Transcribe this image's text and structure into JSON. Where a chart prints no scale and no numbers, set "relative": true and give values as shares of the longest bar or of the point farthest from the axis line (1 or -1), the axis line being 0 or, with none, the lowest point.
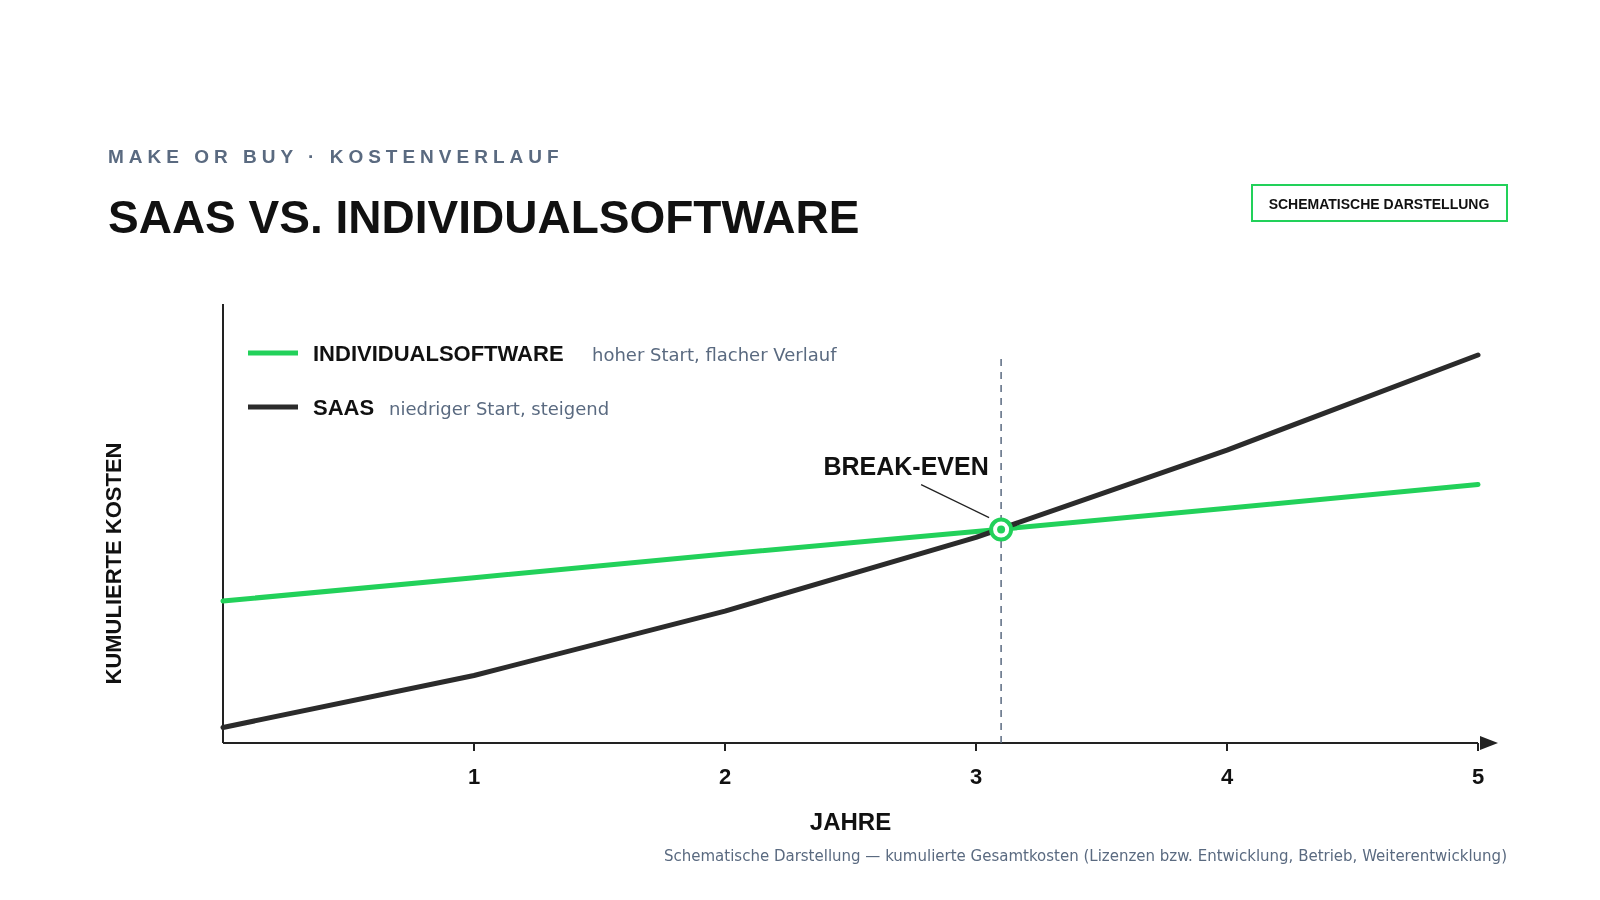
{
  "chart_data": {
    "type": "line",
    "subtitle": "MAKE OR BUY · KOSTENVERLAUF",
    "title": "SAAS VS. INDIVIDUALSOFTWARE",
    "xlabel": "JAHRE",
    "ylabel": "KUMULIERTE KOSTEN",
    "relative": true,
    "x": [
      0,
      1,
      2,
      3,
      4,
      5
    ],
    "xlim": [
      0,
      5
    ],
    "xticks": [
      1,
      2,
      3,
      4,
      5
    ],
    "legend": "top left",
    "marker": "none",
    "line_style": "solid",
    "series": [
      {
        "name": "INDIVIDUALSOFTWARE",
        "color": "#22d15a",
        "values": [
          0.366,
          0.426,
          0.487,
          0.545,
          0.605,
          0.666
        ]
      },
      {
        "name": "SAAS",
        "color": "#2b2b2b",
        "values": [
          0.04,
          0.174,
          0.34,
          0.53,
          0.755,
          1
        ]
      },
      {
        "type": "scatter",
        "color": "#22d15a",
        "x": [
          3.1
        ],
        "values": [
          0.55
        ],
        "marker": "circle"
      }
    ],
    "ref_lines": [
      {
        "axis": "x",
        "value": 3.1,
        "color": "#5a6a80",
        "line_style": "dashed"
      }
    ],
    "annotations": [
      {
        "text": "BREAK-EVEN",
        "x": 3.1,
        "y": 0.55
      },
      "hoher Start, flacher Verlauf",
      "niedriger Start, steigend",
      "SCHEMATISCHE DARSTELLUNG",
      "Schematische Darstellung — kumulierte Gesamtkosten (Lizenzen bzw. Entwicklung, Betrieb, Weiterentwicklung)"
    ]
  }
}
